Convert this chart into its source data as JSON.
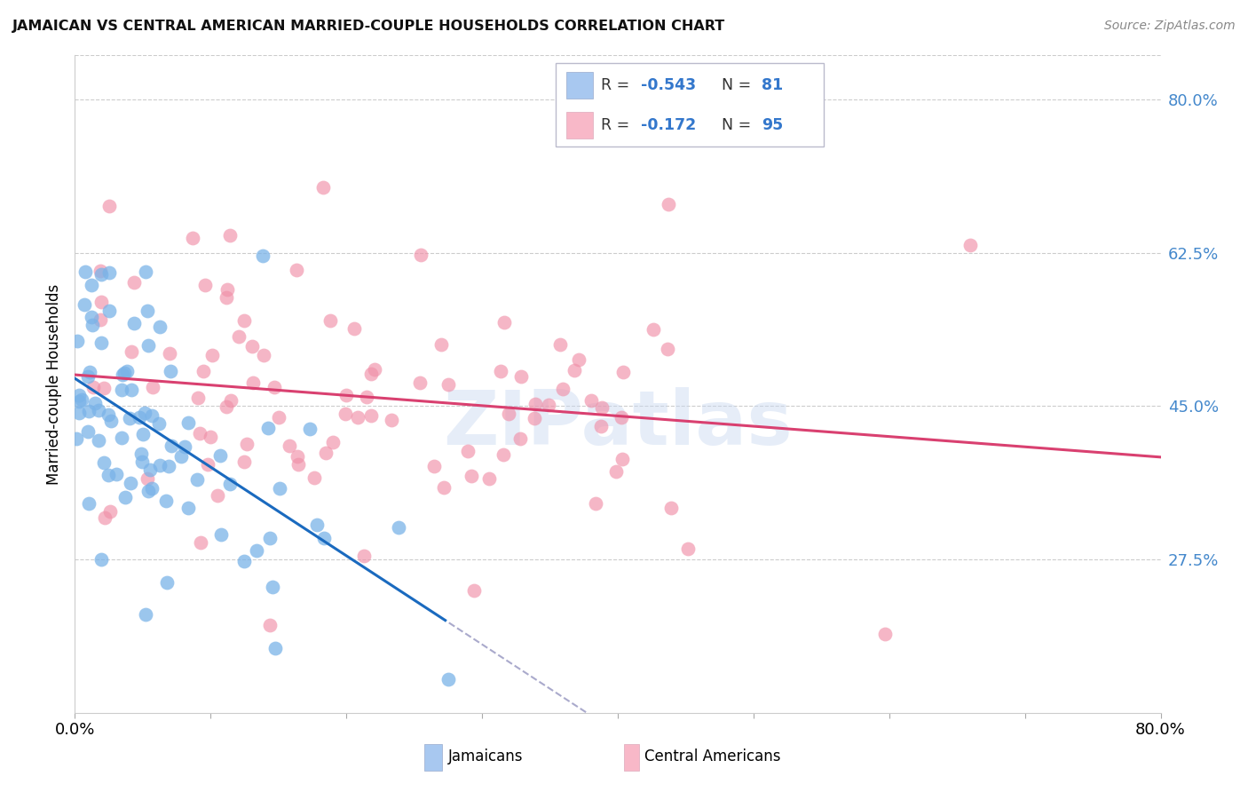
{
  "title": "JAMAICAN VS CENTRAL AMERICAN MARRIED-COUPLE HOUSEHOLDS CORRELATION CHART",
  "source": "Source: ZipAtlas.com",
  "ylabel": "Married-couple Households",
  "ytick_labels": [
    "80.0%",
    "62.5%",
    "45.0%",
    "27.5%"
  ],
  "ytick_values": [
    0.8,
    0.625,
    0.45,
    0.275
  ],
  "xmin": 0.0,
  "xmax": 0.8,
  "ymin": 0.1,
  "ymax": 0.85,
  "jamaican_color": "#7ab3e8",
  "central_color": "#f090a8",
  "jamaican_alpha": 0.75,
  "central_alpha": 0.65,
  "trend_jamaican_color": "#1a6abf",
  "trend_central_color": "#d94070",
  "trend_dashed_color": "#aaaacc",
  "watermark_text": "ZIPatlas",
  "jamaican_label": "Jamaicans",
  "central_label": "Central Americans",
  "jamaican_R": -0.543,
  "jamaican_N": 81,
  "central_R": -0.172,
  "central_N": 95,
  "legend_box_color": "#a8c8f0",
  "legend_pink_color": "#f8b8c8",
  "R_label_color": "#333333",
  "N_label_color": "#3377cc",
  "blue_text_color": "#3377cc",
  "title_color": "#111111",
  "source_color": "#888888",
  "ytick_color": "#4488cc",
  "grid_color": "#cccccc",
  "bottom_tick_color": "#aaaaaa"
}
